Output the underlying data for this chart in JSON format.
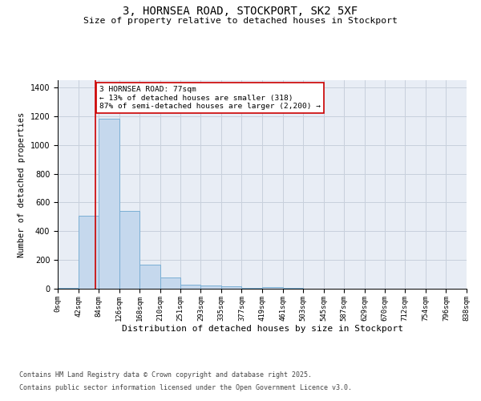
{
  "title": "3, HORNSEA ROAD, STOCKPORT, SK2 5XF",
  "subtitle": "Size of property relative to detached houses in Stockport",
  "xlabel": "Distribution of detached houses by size in Stockport",
  "ylabel": "Number of detached properties",
  "bar_edges": [
    0,
    42,
    84,
    126,
    168,
    210,
    251,
    293,
    335,
    377,
    419,
    461,
    503,
    545,
    587,
    629,
    670,
    712,
    754,
    796,
    838
  ],
  "bar_heights": [
    5,
    510,
    1185,
    540,
    165,
    80,
    30,
    25,
    15,
    5,
    10,
    5,
    0,
    0,
    0,
    0,
    0,
    0,
    0,
    0
  ],
  "bar_color": "#c5d8ed",
  "bar_edge_color": "#7bafd4",
  "property_size": 77,
  "property_line_color": "#cc0000",
  "annotation_text": "3 HORNSEA ROAD: 77sqm\n← 13% of detached houses are smaller (318)\n87% of semi-detached houses are larger (2,200) →",
  "annotation_box_color": "#cc0000",
  "annotation_text_color": "black",
  "annotation_bg_color": "white",
  "ylim": [
    0,
    1450
  ],
  "yticks": [
    0,
    200,
    400,
    600,
    800,
    1000,
    1200,
    1400
  ],
  "grid_color": "#c8d0dc",
  "background_color": "#e8edf5",
  "footer_line1": "Contains HM Land Registry data © Crown copyright and database right 2025.",
  "footer_line2": "Contains public sector information licensed under the Open Government Licence v3.0.",
  "tick_labels": [
    "0sqm",
    "42sqm",
    "84sqm",
    "126sqm",
    "168sqm",
    "210sqm",
    "251sqm",
    "293sqm",
    "335sqm",
    "377sqm",
    "419sqm",
    "461sqm",
    "503sqm",
    "545sqm",
    "587sqm",
    "629sqm",
    "670sqm",
    "712sqm",
    "754sqm",
    "796sqm",
    "838sqm"
  ]
}
